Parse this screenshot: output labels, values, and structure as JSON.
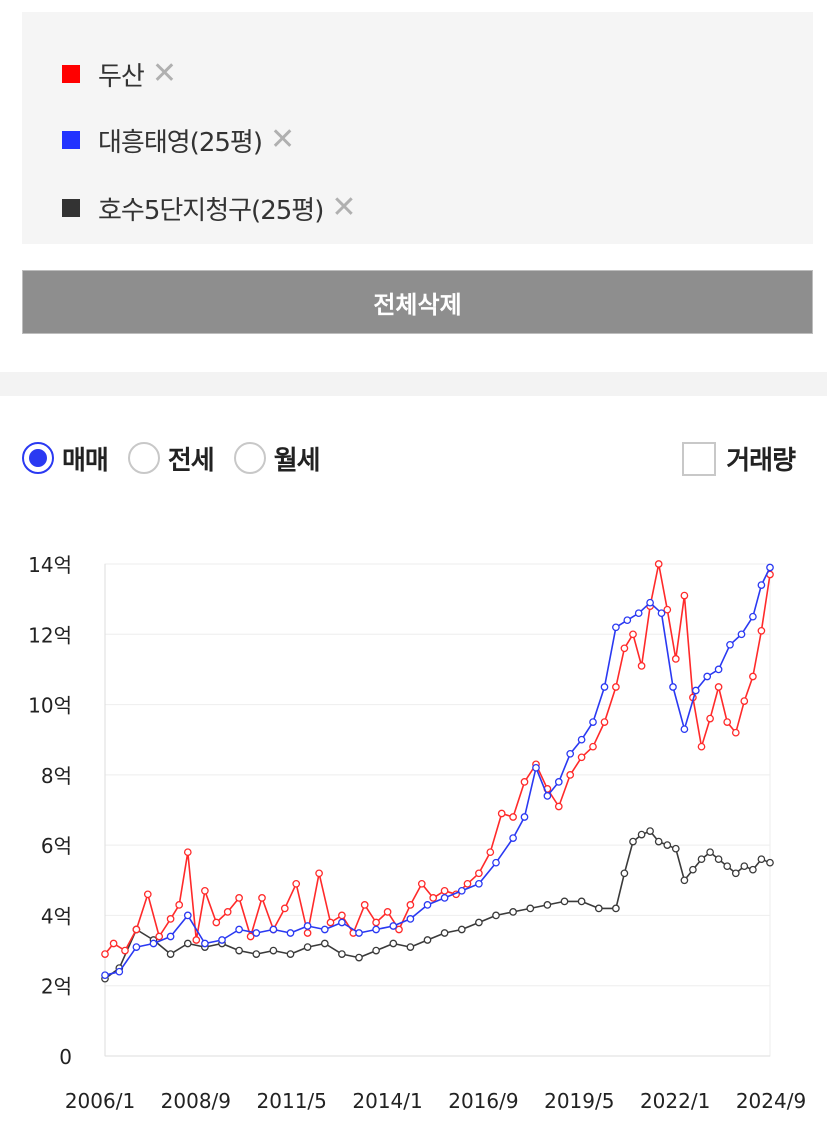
{
  "compare_list": {
    "items": [
      {
        "label": "두산",
        "color": "#ff0000"
      },
      {
        "label": "대흥태영(25평)",
        "color": "#2233ff"
      },
      {
        "label": "호수5단지청구(25평)",
        "color": "#333333"
      }
    ],
    "remove_icon": "✕",
    "remove_icon_name": "close-icon"
  },
  "delete_all_label": "전체삭제",
  "trade_type": {
    "options": [
      "매매",
      "전세",
      "월세"
    ],
    "selected": "매매"
  },
  "volume_toggle": {
    "label": "거래량",
    "checked": false
  },
  "chart_data": {
    "type": "line",
    "y_unit": "억",
    "ylim": [
      0,
      14
    ],
    "yticks": [
      0,
      2,
      4,
      6,
      8,
      10,
      12,
      14
    ],
    "ytick_labels": [
      "0",
      "2억",
      "4억",
      "6억",
      "8억",
      "10억",
      "12억",
      "14억"
    ],
    "xlim": [
      "2006-01",
      "2025-06"
    ],
    "xtick_labels": [
      "2006/1",
      "2008/9",
      "2011/5",
      "2014/1",
      "2016/9",
      "2019/5",
      "2022/1",
      "2024/9"
    ],
    "grid": true,
    "series": [
      {
        "name": "두산",
        "color": "#ff2a2a",
        "x": [
          "2006-01",
          "2006-04",
          "2006-08",
          "2006-12",
          "2007-04",
          "2007-08",
          "2007-12",
          "2008-03",
          "2008-06",
          "2008-09",
          "2008-12",
          "2009-04",
          "2009-08",
          "2009-12",
          "2010-04",
          "2010-08",
          "2010-12",
          "2011-04",
          "2011-08",
          "2011-12",
          "2012-04",
          "2012-08",
          "2012-12",
          "2013-04",
          "2013-08",
          "2013-12",
          "2014-04",
          "2014-08",
          "2014-12",
          "2015-04",
          "2015-08",
          "2015-12",
          "2016-04",
          "2016-08",
          "2016-12",
          "2017-04",
          "2017-08",
          "2017-12",
          "2018-04",
          "2018-08",
          "2018-12",
          "2019-04",
          "2019-08",
          "2019-12",
          "2020-04",
          "2020-08",
          "2020-12",
          "2021-03",
          "2021-06",
          "2021-09",
          "2021-12",
          "2022-03",
          "2022-06",
          "2022-09",
          "2022-12",
          "2023-03",
          "2023-06",
          "2023-09",
          "2023-12",
          "2024-03",
          "2024-06",
          "2024-09",
          "2024-12",
          "2025-03",
          "2025-06"
        ],
        "values": [
          2.9,
          3.2,
          3.0,
          3.6,
          4.6,
          3.4,
          3.9,
          4.3,
          5.8,
          3.3,
          4.7,
          3.8,
          4.1,
          4.5,
          3.4,
          4.5,
          3.6,
          4.2,
          4.9,
          3.5,
          5.2,
          3.8,
          4.0,
          3.5,
          4.3,
          3.8,
          4.1,
          3.6,
          4.3,
          4.9,
          4.5,
          4.7,
          4.6,
          4.9,
          5.2,
          5.8,
          6.9,
          6.8,
          7.8,
          8.3,
          7.6,
          7.1,
          8.0,
          8.5,
          8.8,
          9.5,
          10.5,
          11.6,
          12.0,
          11.1,
          12.8,
          14.0,
          12.7,
          11.3,
          13.1,
          10.2,
          8.8,
          9.6,
          10.5,
          9.5,
          9.2,
          10.1,
          10.8,
          12.1,
          13.7
        ]
      },
      {
        "name": "대흥태영(25평)",
        "color": "#2a39f2",
        "x": [
          "2006-01",
          "2006-06",
          "2006-12",
          "2007-06",
          "2007-12",
          "2008-06",
          "2008-12",
          "2009-06",
          "2009-12",
          "2010-06",
          "2010-12",
          "2011-06",
          "2011-12",
          "2012-06",
          "2012-12",
          "2013-06",
          "2013-12",
          "2014-06",
          "2014-12",
          "2015-06",
          "2015-12",
          "2016-06",
          "2016-12",
          "2017-06",
          "2017-12",
          "2018-04",
          "2018-08",
          "2018-12",
          "2019-04",
          "2019-08",
          "2019-12",
          "2020-04",
          "2020-08",
          "2020-12",
          "2021-04",
          "2021-08",
          "2021-12",
          "2022-04",
          "2022-08",
          "2022-12",
          "2023-04",
          "2023-08",
          "2023-12",
          "2024-04",
          "2024-08",
          "2024-12",
          "2025-03",
          "2025-06"
        ],
        "values": [
          2.3,
          2.4,
          3.1,
          3.2,
          3.4,
          4.0,
          3.2,
          3.3,
          3.6,
          3.5,
          3.6,
          3.5,
          3.7,
          3.6,
          3.8,
          3.5,
          3.6,
          3.7,
          3.9,
          4.3,
          4.5,
          4.7,
          4.9,
          5.5,
          6.2,
          6.8,
          8.2,
          7.4,
          7.8,
          8.6,
          9.0,
          9.5,
          10.5,
          12.2,
          12.4,
          12.6,
          12.9,
          12.6,
          10.5,
          9.3,
          10.4,
          10.8,
          11.0,
          11.7,
          12.0,
          12.5,
          13.4,
          13.9
        ]
      },
      {
        "name": "호수5단지청구(25평)",
        "color": "#3a3a3a",
        "x": [
          "2006-01",
          "2006-06",
          "2006-12",
          "2007-06",
          "2007-12",
          "2008-06",
          "2008-12",
          "2009-06",
          "2009-12",
          "2010-06",
          "2010-12",
          "2011-06",
          "2011-12",
          "2012-06",
          "2012-12",
          "2013-06",
          "2013-12",
          "2014-06",
          "2014-12",
          "2015-06",
          "2015-12",
          "2016-06",
          "2016-12",
          "2017-06",
          "2017-12",
          "2018-06",
          "2018-12",
          "2019-06",
          "2019-12",
          "2020-06",
          "2020-12",
          "2021-03",
          "2021-06",
          "2021-09",
          "2021-12",
          "2022-03",
          "2022-06",
          "2022-09",
          "2022-12",
          "2023-03",
          "2023-06",
          "2023-09",
          "2023-12",
          "2024-03",
          "2024-06",
          "2024-09",
          "2024-12",
          "2025-03",
          "2025-06"
        ],
        "values": [
          2.2,
          2.5,
          3.6,
          3.3,
          2.9,
          3.2,
          3.1,
          3.2,
          3.0,
          2.9,
          3.0,
          2.9,
          3.1,
          3.2,
          2.9,
          2.8,
          3.0,
          3.2,
          3.1,
          3.3,
          3.5,
          3.6,
          3.8,
          4.0,
          4.1,
          4.2,
          4.3,
          4.4,
          4.4,
          4.2,
          4.2,
          5.2,
          6.1,
          6.3,
          6.4,
          6.1,
          6.0,
          5.9,
          5.0,
          5.3,
          5.6,
          5.8,
          5.6,
          5.4,
          5.2,
          5.4,
          5.3,
          5.6,
          5.5
        ]
      }
    ]
  }
}
